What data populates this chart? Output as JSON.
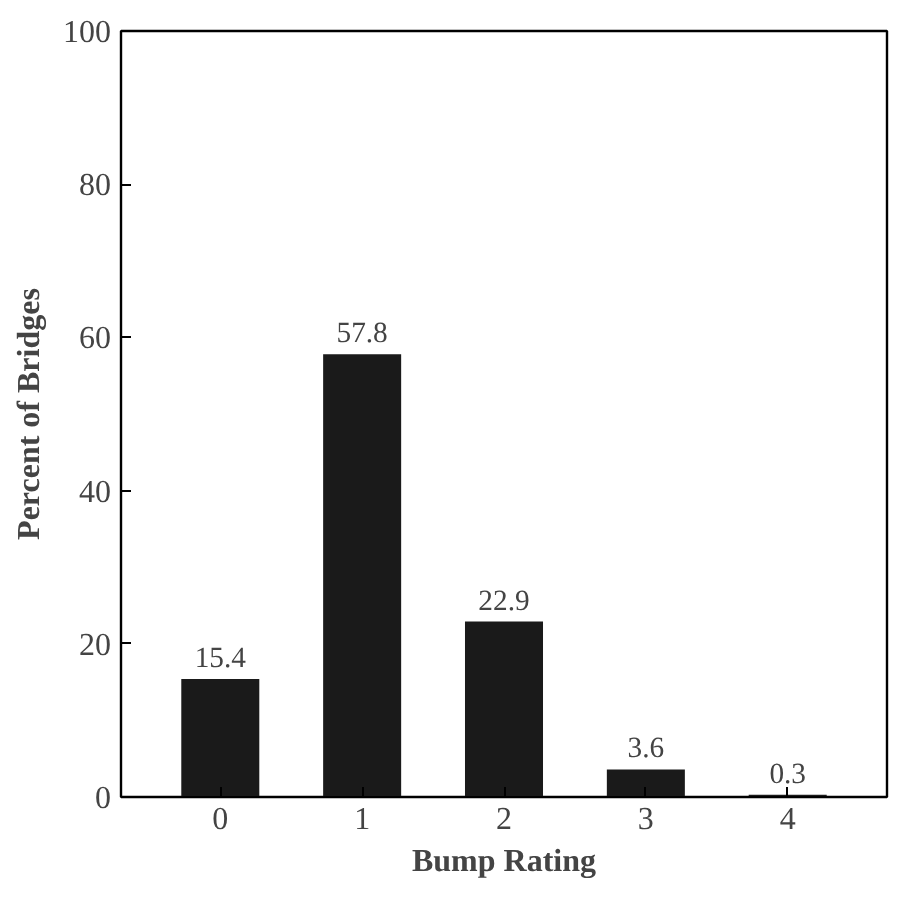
{
  "chart_data": {
    "type": "bar",
    "xlabel": "Bump Rating",
    "ylabel": "Percent of Bridges",
    "categories": [
      "0",
      "1",
      "2",
      "3",
      "4"
    ],
    "values": [
      15.4,
      57.8,
      22.9,
      3.6,
      0.3
    ],
    "color": "#1a1a1a",
    "data_labels": true,
    "ylim": [
      0,
      100
    ],
    "yticks": [
      0,
      20,
      40,
      60,
      80,
      100
    ],
    "grid": false
  }
}
